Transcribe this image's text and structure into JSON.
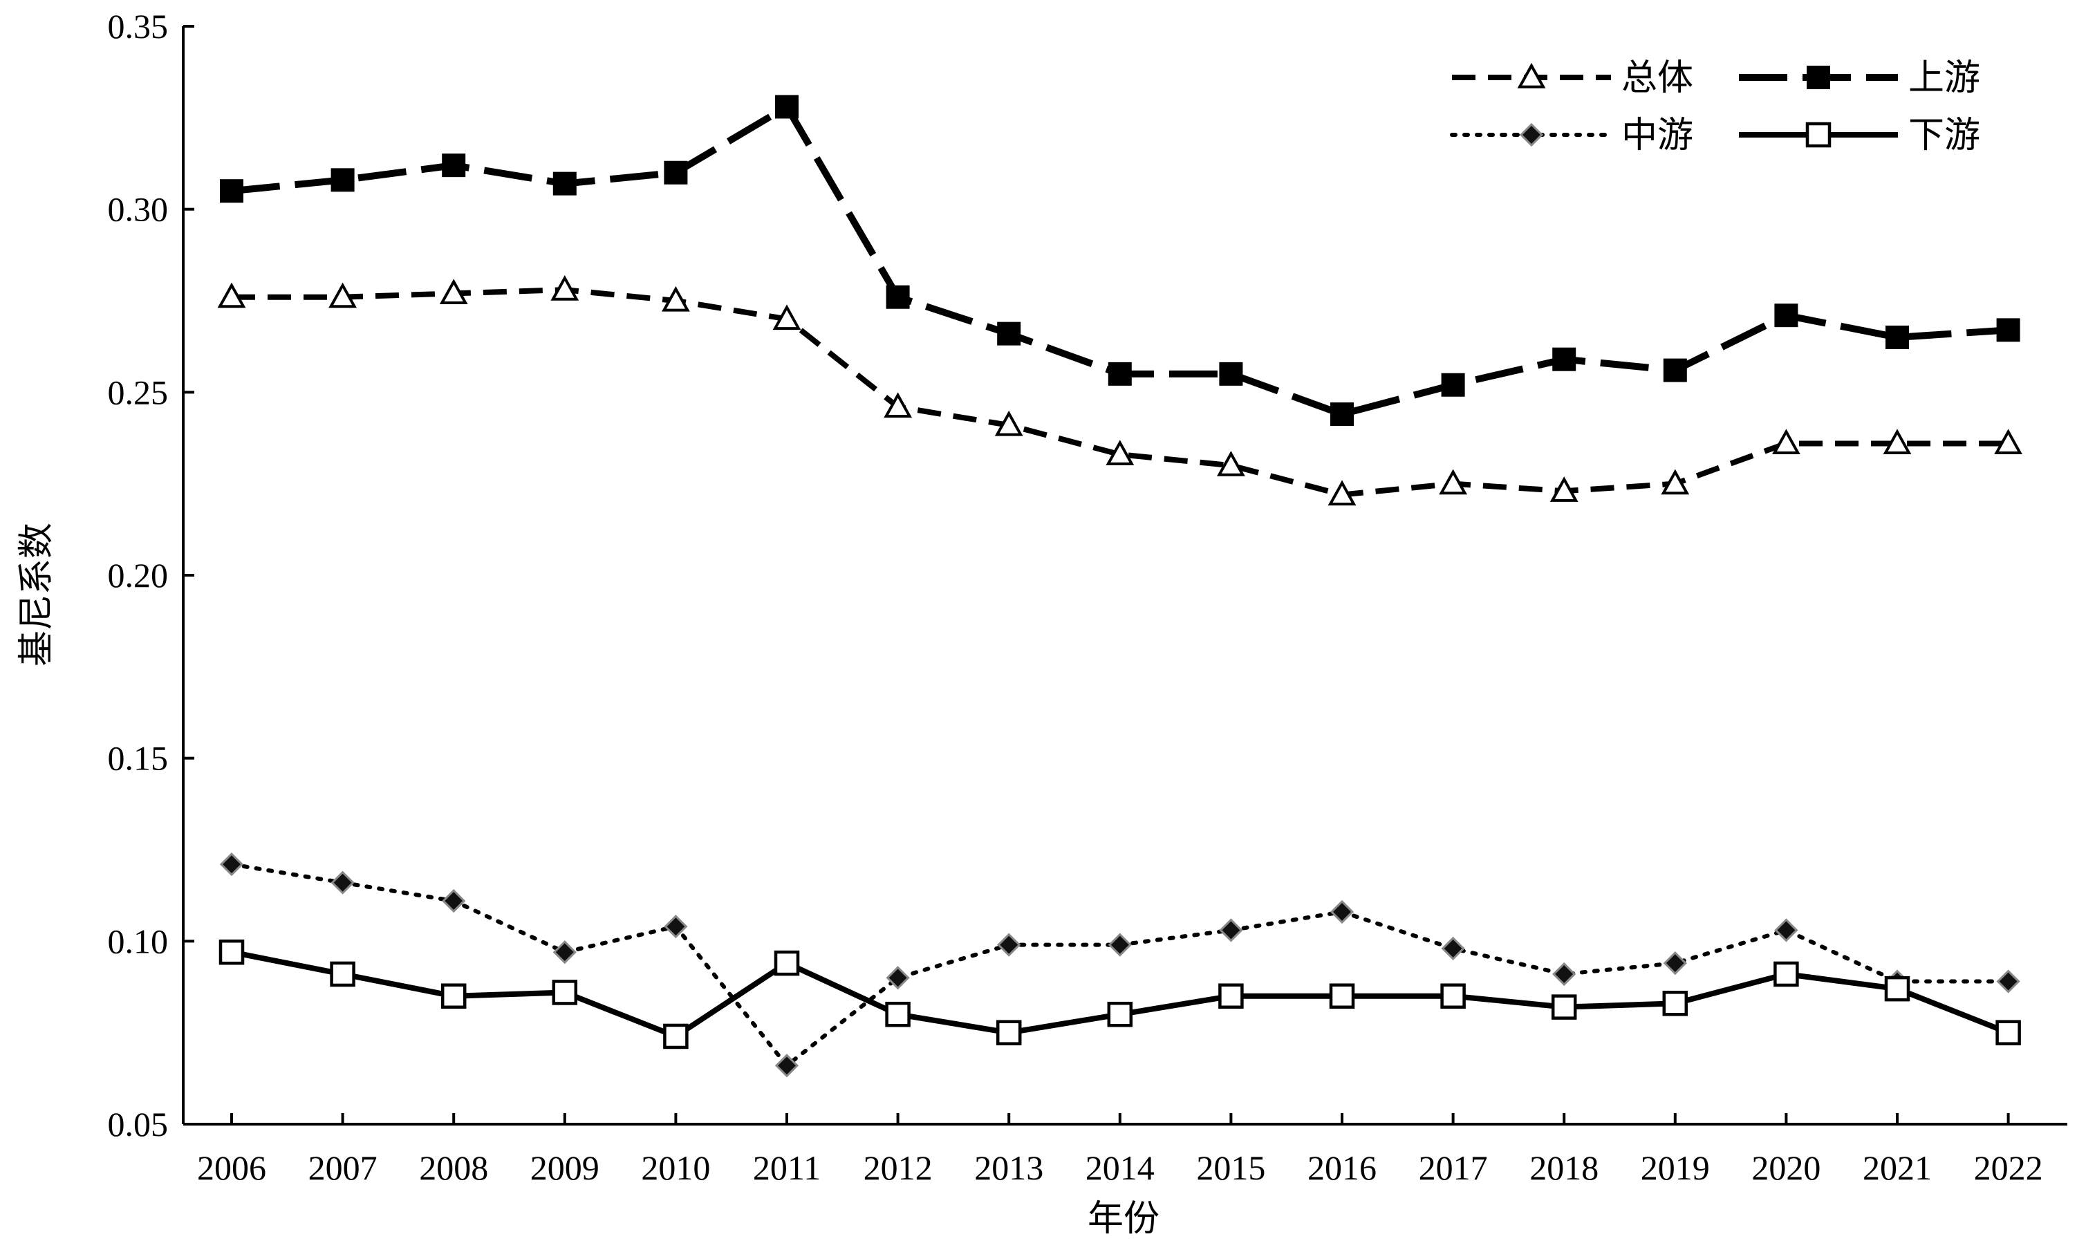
{
  "chart_data": {
    "type": "line",
    "xlabel": "年份",
    "ylabel": "基尼系数",
    "ylim": [
      0.05,
      0.35
    ],
    "yticks": [
      "0.05",
      "0.10",
      "0.15",
      "0.20",
      "0.25",
      "0.30",
      "0.35"
    ],
    "categories": [
      "2006",
      "2007",
      "2008",
      "2009",
      "2010",
      "2011",
      "2012",
      "2013",
      "2014",
      "2015",
      "2016",
      "2017",
      "2018",
      "2019",
      "2020",
      "2021",
      "2022"
    ],
    "legend_position": "top-right",
    "series": [
      {
        "name": "总体",
        "values": [
          0.276,
          0.276,
          0.277,
          0.278,
          0.275,
          0.27,
          0.246,
          0.241,
          0.233,
          0.23,
          0.222,
          0.225,
          0.223,
          0.225,
          0.236,
          0.236,
          0.236
        ],
        "line_style": "dashed",
        "marker": "triangle-open",
        "color": "#000000"
      },
      {
        "name": "上游",
        "values": [
          0.305,
          0.308,
          0.312,
          0.307,
          0.31,
          0.328,
          0.276,
          0.266,
          0.255,
          0.255,
          0.244,
          0.252,
          0.259,
          0.256,
          0.271,
          0.265,
          0.267
        ],
        "line_style": "long-dash",
        "marker": "square-filled",
        "color": "#000000"
      },
      {
        "name": "中游",
        "values": [
          0.121,
          0.116,
          0.111,
          0.097,
          0.104,
          0.066,
          0.09,
          0.099,
          0.099,
          0.103,
          0.108,
          0.098,
          0.091,
          0.094,
          0.103,
          0.089,
          0.089
        ],
        "line_style": "dotted",
        "marker": "diamond-filled",
        "color": "#000000"
      },
      {
        "name": "下游",
        "values": [
          0.097,
          0.091,
          0.085,
          0.086,
          0.074,
          0.094,
          0.08,
          0.075,
          0.08,
          0.085,
          0.085,
          0.085,
          0.082,
          0.083,
          0.091,
          0.087,
          0.075
        ],
        "line_style": "solid",
        "marker": "square-open",
        "color": "#000000"
      }
    ]
  }
}
